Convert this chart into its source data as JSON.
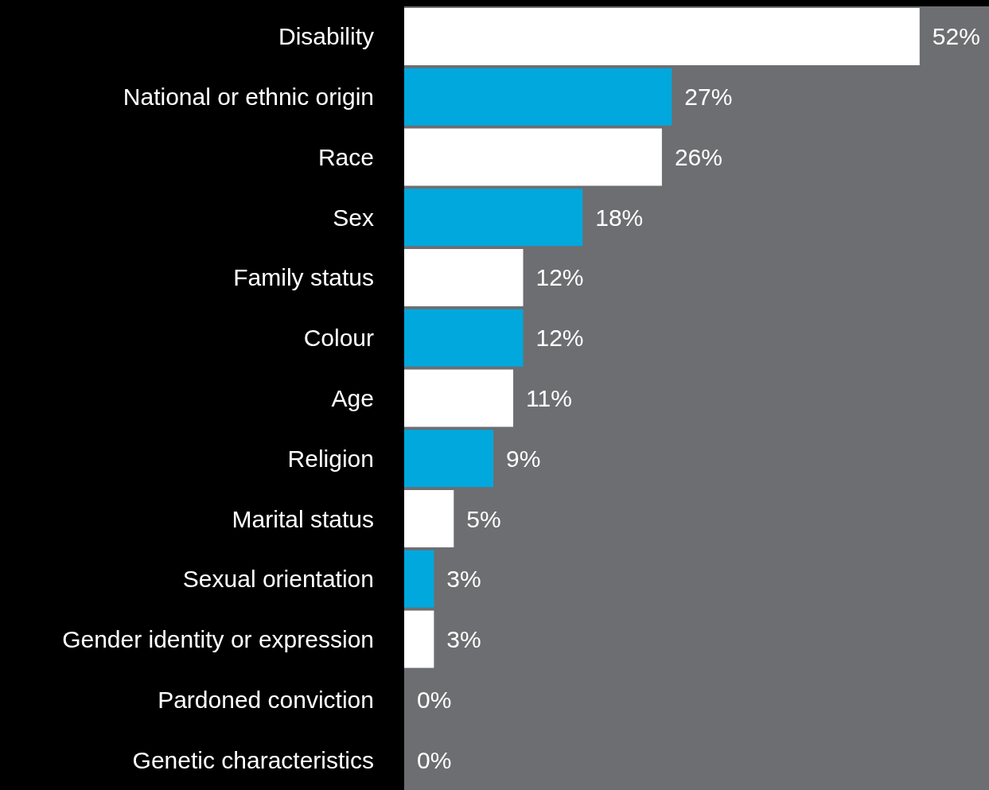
{
  "chart_data": {
    "type": "bar",
    "orientation": "horizontal",
    "categories": [
      "Disability",
      "National or ethnic origin",
      "Race",
      "Sex",
      "Family status",
      "Colour",
      "Age",
      "Religion",
      "Marital status",
      "Sexual orientation",
      "Gender identity or expression",
      "Pardoned conviction",
      "Genetic characteristics"
    ],
    "values": [
      52,
      27,
      26,
      18,
      12,
      12,
      11,
      9,
      5,
      3,
      3,
      0,
      0
    ],
    "colors": [
      "#ffffff",
      "#00a8de",
      "#ffffff",
      "#00a8de",
      "#ffffff",
      "#00a8de",
      "#ffffff",
      "#00a8de",
      "#ffffff",
      "#00a8de",
      "#ffffff",
      "#00a8de",
      "#ffffff"
    ],
    "value_labels": [
      "52%",
      "27%",
      "26%",
      "18%",
      "12%",
      "12%",
      "11%",
      "9%",
      "5%",
      "3%",
      "3%",
      "0%",
      "0%"
    ],
    "xlim": [
      0,
      59
    ],
    "bands": [
      {
        "axis": "x",
        "from": 0,
        "to": 59,
        "color": "#6d6e71"
      }
    ]
  }
}
